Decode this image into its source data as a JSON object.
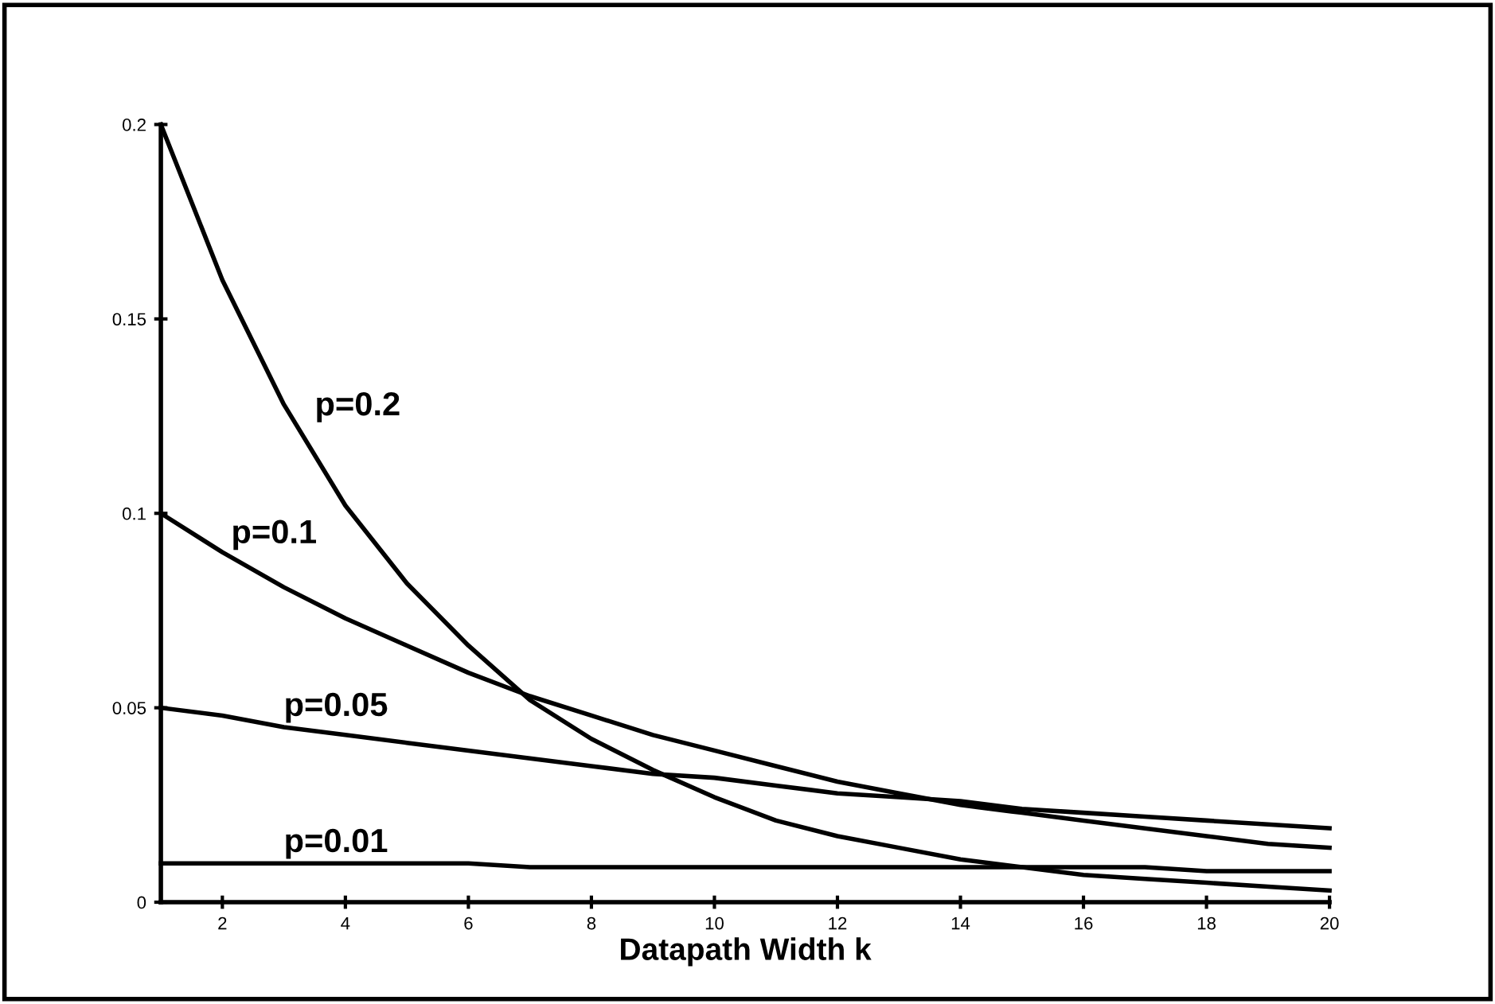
{
  "chart_data": {
    "type": "line",
    "xlabel": "Datapath Width k",
    "x": [
      1,
      2,
      3,
      4,
      5,
      6,
      7,
      8,
      9,
      10,
      11,
      12,
      13,
      14,
      15,
      16,
      17,
      18,
      19,
      20
    ],
    "series": [
      {
        "name": "p=0.2",
        "color": "#000000",
        "values": [
          0.2,
          0.16,
          0.128,
          0.102,
          0.082,
          0.066,
          0.052,
          0.042,
          0.034,
          0.027,
          0.021,
          0.017,
          0.014,
          0.011,
          0.009,
          0.007,
          0.006,
          0.005,
          0.004,
          0.003
        ]
      },
      {
        "name": "p=0.1",
        "color": "#000000",
        "values": [
          0.1,
          0.09,
          0.081,
          0.073,
          0.066,
          0.059,
          0.053,
          0.048,
          0.043,
          0.039,
          0.035,
          0.031,
          0.028,
          0.025,
          0.023,
          0.021,
          0.019,
          0.017,
          0.015,
          0.014
        ]
      },
      {
        "name": "p=0.05",
        "color": "#000000",
        "values": [
          0.05,
          0.048,
          0.045,
          0.043,
          0.041,
          0.039,
          0.037,
          0.035,
          0.033,
          0.032,
          0.03,
          0.028,
          0.027,
          0.026,
          0.024,
          0.023,
          0.022,
          0.021,
          0.02,
          0.019
        ]
      },
      {
        "name": "p=0.01",
        "color": "#000000",
        "values": [
          0.01,
          0.01,
          0.01,
          0.01,
          0.01,
          0.01,
          0.009,
          0.009,
          0.009,
          0.009,
          0.009,
          0.009,
          0.009,
          0.009,
          0.009,
          0.009,
          0.009,
          0.008,
          0.008,
          0.008
        ]
      }
    ],
    "xlim": [
      1,
      20
    ],
    "xticks": [
      2,
      4,
      6,
      8,
      10,
      12,
      14,
      16,
      18,
      20
    ],
    "ylim": [
      0,
      0.2
    ],
    "yticks": [
      0,
      0.05,
      0.1,
      0.15,
      0.2
    ],
    "grid": false,
    "legend": false,
    "marker": "none",
    "line_style": "solid"
  }
}
